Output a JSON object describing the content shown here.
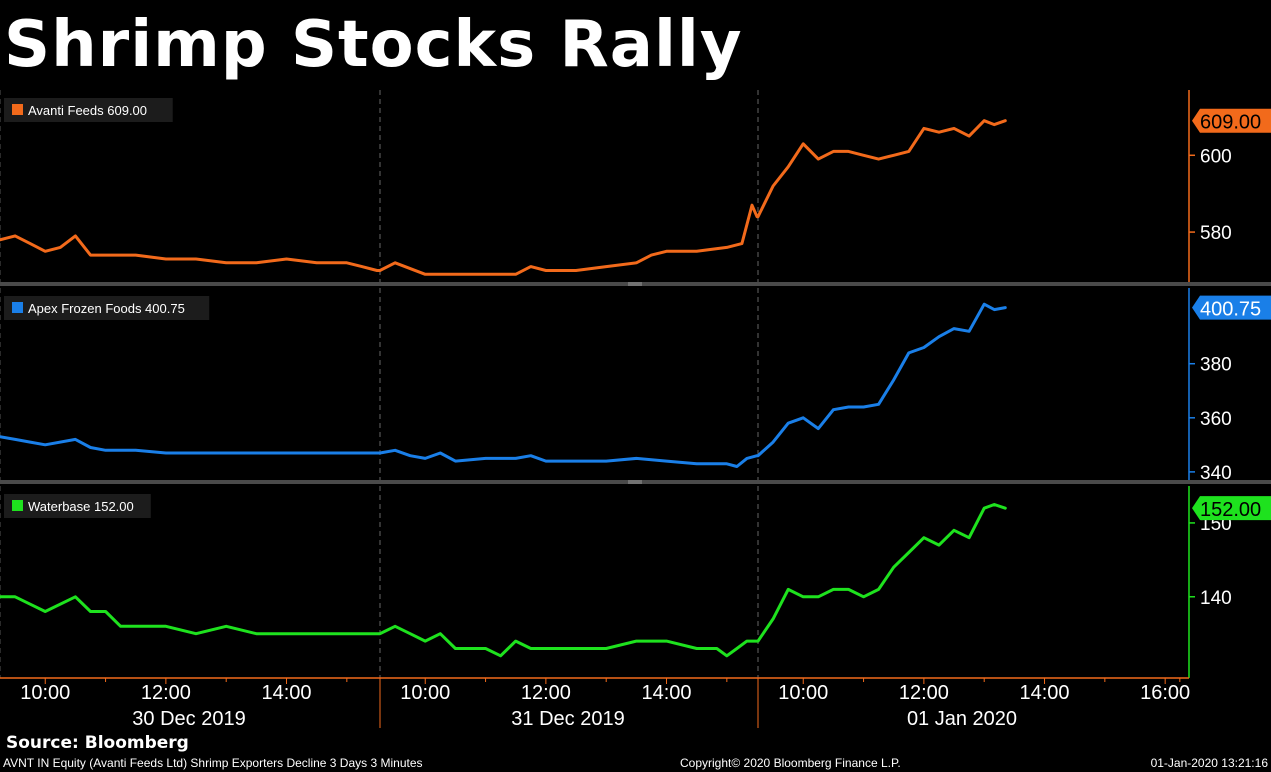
{
  "title": "Shrimp Stocks Rally",
  "source": "Source: Bloomberg",
  "footer": {
    "left": "AVNT IN Equity (Avanti Feeds Ltd) Shrimp Exporters Decline 3 Days 3 Minutes",
    "center": "Copyright© 2020 Bloomberg Finance L.P.",
    "right": "01-Jan-2020 13:21:16"
  },
  "colors": {
    "background": "#000000",
    "avanti": "#f26a1b",
    "apex": "#1a7fe8",
    "waterbase": "#1ee21e"
  },
  "chart_data": {
    "type": "line",
    "x_axis": {
      "days": [
        "30 Dec 2019",
        "31 Dec 2019",
        "01 Jan 2020"
      ],
      "tick_labels": [
        {
          "day": 0,
          "time": "10:00"
        },
        {
          "day": 0,
          "time": "12:00"
        },
        {
          "day": 0,
          "time": "14:00"
        },
        {
          "day": 1,
          "time": "10:00"
        },
        {
          "day": 1,
          "time": "12:00"
        },
        {
          "day": 1,
          "time": "14:00"
        },
        {
          "day": 2,
          "time": "10:00"
        },
        {
          "day": 2,
          "time": "12:00"
        },
        {
          "day": 2,
          "time": "14:00"
        },
        {
          "day": 2,
          "time": "16:00"
        }
      ]
    },
    "panels": [
      {
        "name": "Avanti Feeds",
        "last": "609.00",
        "color": "#f26a1b",
        "ylim": [
          567,
          617
        ],
        "yticks": [
          580,
          600
        ],
        "points": [
          [
            0,
            "09:15",
            578
          ],
          [
            0,
            "09:30",
            579
          ],
          [
            0,
            "09:45",
            577
          ],
          [
            0,
            "10:00",
            575
          ],
          [
            0,
            "10:15",
            576
          ],
          [
            0,
            "10:30",
            579
          ],
          [
            0,
            "10:45",
            574
          ],
          [
            0,
            "11:00",
            574
          ],
          [
            0,
            "11:30",
            574
          ],
          [
            0,
            "12:00",
            573
          ],
          [
            0,
            "12:30",
            573
          ],
          [
            0,
            "13:00",
            572
          ],
          [
            0,
            "13:30",
            572
          ],
          [
            0,
            "14:00",
            573
          ],
          [
            0,
            "14:30",
            572
          ],
          [
            0,
            "15:00",
            572
          ],
          [
            0,
            "15:15",
            571
          ],
          [
            0,
            "15:30",
            570
          ],
          [
            1,
            "09:15",
            570
          ],
          [
            1,
            "09:30",
            572
          ],
          [
            1,
            "10:00",
            569
          ],
          [
            1,
            "10:30",
            569
          ],
          [
            1,
            "11:00",
            569
          ],
          [
            1,
            "11:30",
            569
          ],
          [
            1,
            "11:45",
            571
          ],
          [
            1,
            "12:00",
            570
          ],
          [
            1,
            "12:30",
            570
          ],
          [
            1,
            "13:00",
            571
          ],
          [
            1,
            "13:30",
            572
          ],
          [
            1,
            "13:45",
            574
          ],
          [
            1,
            "14:00",
            575
          ],
          [
            1,
            "14:30",
            575
          ],
          [
            1,
            "15:00",
            576
          ],
          [
            1,
            "15:15",
            577
          ],
          [
            1,
            "15:25",
            587
          ],
          [
            1,
            "15:30",
            584
          ],
          [
            2,
            "09:15",
            584
          ],
          [
            2,
            "09:30",
            592
          ],
          [
            2,
            "09:45",
            597
          ],
          [
            2,
            "10:00",
            603
          ],
          [
            2,
            "10:15",
            599
          ],
          [
            2,
            "10:30",
            601
          ],
          [
            2,
            "10:45",
            601
          ],
          [
            2,
            "11:00",
            600
          ],
          [
            2,
            "11:15",
            599
          ],
          [
            2,
            "11:30",
            600
          ],
          [
            2,
            "11:45",
            601
          ],
          [
            2,
            "12:00",
            607
          ],
          [
            2,
            "12:15",
            606
          ],
          [
            2,
            "12:30",
            607
          ],
          [
            2,
            "12:45",
            605
          ],
          [
            2,
            "13:00",
            609
          ],
          [
            2,
            "13:10",
            608
          ],
          [
            2,
            "13:21",
            609
          ]
        ]
      },
      {
        "name": "Apex Frozen Foods",
        "last": "400.75",
        "color": "#1a7fe8",
        "ylim": [
          337,
          408
        ],
        "yticks": [
          340,
          360,
          380
        ],
        "points": [
          [
            0,
            "09:15",
            353
          ],
          [
            0,
            "09:30",
            352
          ],
          [
            0,
            "09:45",
            351
          ],
          [
            0,
            "10:00",
            350
          ],
          [
            0,
            "10:30",
            352
          ],
          [
            0,
            "10:45",
            349
          ],
          [
            0,
            "11:00",
            348
          ],
          [
            0,
            "11:30",
            348
          ],
          [
            0,
            "12:00",
            347
          ],
          [
            0,
            "12:30",
            347
          ],
          [
            0,
            "13:00",
            347
          ],
          [
            0,
            "13:30",
            347
          ],
          [
            0,
            "14:00",
            347
          ],
          [
            0,
            "14:30",
            347
          ],
          [
            0,
            "15:00",
            347
          ],
          [
            0,
            "15:30",
            347
          ],
          [
            1,
            "09:15",
            347
          ],
          [
            1,
            "09:30",
            348
          ],
          [
            1,
            "09:45",
            346
          ],
          [
            1,
            "10:00",
            345
          ],
          [
            1,
            "10:15",
            347
          ],
          [
            1,
            "10:30",
            344
          ],
          [
            1,
            "11:00",
            345
          ],
          [
            1,
            "11:30",
            345
          ],
          [
            1,
            "11:45",
            346
          ],
          [
            1,
            "12:00",
            344
          ],
          [
            1,
            "12:30",
            344
          ],
          [
            1,
            "13:00",
            344
          ],
          [
            1,
            "13:30",
            345
          ],
          [
            1,
            "14:00",
            344
          ],
          [
            1,
            "14:30",
            343
          ],
          [
            1,
            "15:00",
            343
          ],
          [
            1,
            "15:10",
            342
          ],
          [
            1,
            "15:20",
            345
          ],
          [
            1,
            "15:30",
            346
          ],
          [
            2,
            "09:15",
            346
          ],
          [
            2,
            "09:30",
            351
          ],
          [
            2,
            "09:45",
            358
          ],
          [
            2,
            "10:00",
            360
          ],
          [
            2,
            "10:15",
            356
          ],
          [
            2,
            "10:30",
            363
          ],
          [
            2,
            "10:45",
            364
          ],
          [
            2,
            "11:00",
            364
          ],
          [
            2,
            "11:15",
            365
          ],
          [
            2,
            "11:30",
            374
          ],
          [
            2,
            "11:45",
            384
          ],
          [
            2,
            "12:00",
            386
          ],
          [
            2,
            "12:15",
            390
          ],
          [
            2,
            "12:30",
            393
          ],
          [
            2,
            "12:45",
            392
          ],
          [
            2,
            "13:00",
            402
          ],
          [
            2,
            "13:10",
            400
          ],
          [
            2,
            "13:21",
            400.75
          ]
        ]
      },
      {
        "name": "Waterbase",
        "last": "152.00",
        "color": "#1ee21e",
        "ylim": [
          129,
          155
        ],
        "yticks": [
          140,
          150
        ],
        "points": [
          [
            0,
            "09:15",
            140
          ],
          [
            0,
            "09:30",
            140
          ],
          [
            0,
            "09:45",
            139
          ],
          [
            0,
            "10:00",
            138
          ],
          [
            0,
            "10:30",
            140
          ],
          [
            0,
            "10:45",
            138
          ],
          [
            0,
            "11:00",
            138
          ],
          [
            0,
            "11:15",
            136
          ],
          [
            0,
            "11:30",
            136
          ],
          [
            0,
            "12:00",
            136
          ],
          [
            0,
            "12:30",
            135
          ],
          [
            0,
            "13:00",
            136
          ],
          [
            0,
            "13:30",
            135
          ],
          [
            0,
            "14:00",
            135
          ],
          [
            0,
            "14:30",
            135
          ],
          [
            0,
            "15:00",
            135
          ],
          [
            0,
            "15:30",
            135
          ],
          [
            1,
            "09:15",
            135
          ],
          [
            1,
            "09:30",
            136
          ],
          [
            1,
            "09:45",
            135
          ],
          [
            1,
            "10:00",
            134
          ],
          [
            1,
            "10:15",
            135
          ],
          [
            1,
            "10:30",
            133
          ],
          [
            1,
            "11:00",
            133
          ],
          [
            1,
            "11:15",
            132
          ],
          [
            1,
            "11:30",
            134
          ],
          [
            1,
            "11:45",
            133
          ],
          [
            1,
            "12:00",
            133
          ],
          [
            1,
            "12:30",
            133
          ],
          [
            1,
            "13:00",
            133
          ],
          [
            1,
            "13:30",
            134
          ],
          [
            1,
            "14:00",
            134
          ],
          [
            1,
            "14:30",
            133
          ],
          [
            1,
            "14:50",
            133
          ],
          [
            1,
            "15:00",
            132
          ],
          [
            1,
            "15:10",
            133
          ],
          [
            1,
            "15:20",
            134
          ],
          [
            1,
            "15:30",
            134
          ],
          [
            2,
            "09:15",
            134
          ],
          [
            2,
            "09:30",
            137
          ],
          [
            2,
            "09:45",
            141
          ],
          [
            2,
            "10:00",
            140
          ],
          [
            2,
            "10:15",
            140
          ],
          [
            2,
            "10:30",
            141
          ],
          [
            2,
            "10:45",
            141
          ],
          [
            2,
            "11:00",
            140
          ],
          [
            2,
            "11:15",
            141
          ],
          [
            2,
            "11:30",
            144
          ],
          [
            2,
            "11:45",
            146
          ],
          [
            2,
            "12:00",
            148
          ],
          [
            2,
            "12:15",
            147
          ],
          [
            2,
            "12:30",
            149
          ],
          [
            2,
            "12:45",
            148
          ],
          [
            2,
            "13:00",
            152
          ],
          [
            2,
            "13:10",
            152.5
          ],
          [
            2,
            "13:21",
            152
          ]
        ]
      }
    ]
  }
}
